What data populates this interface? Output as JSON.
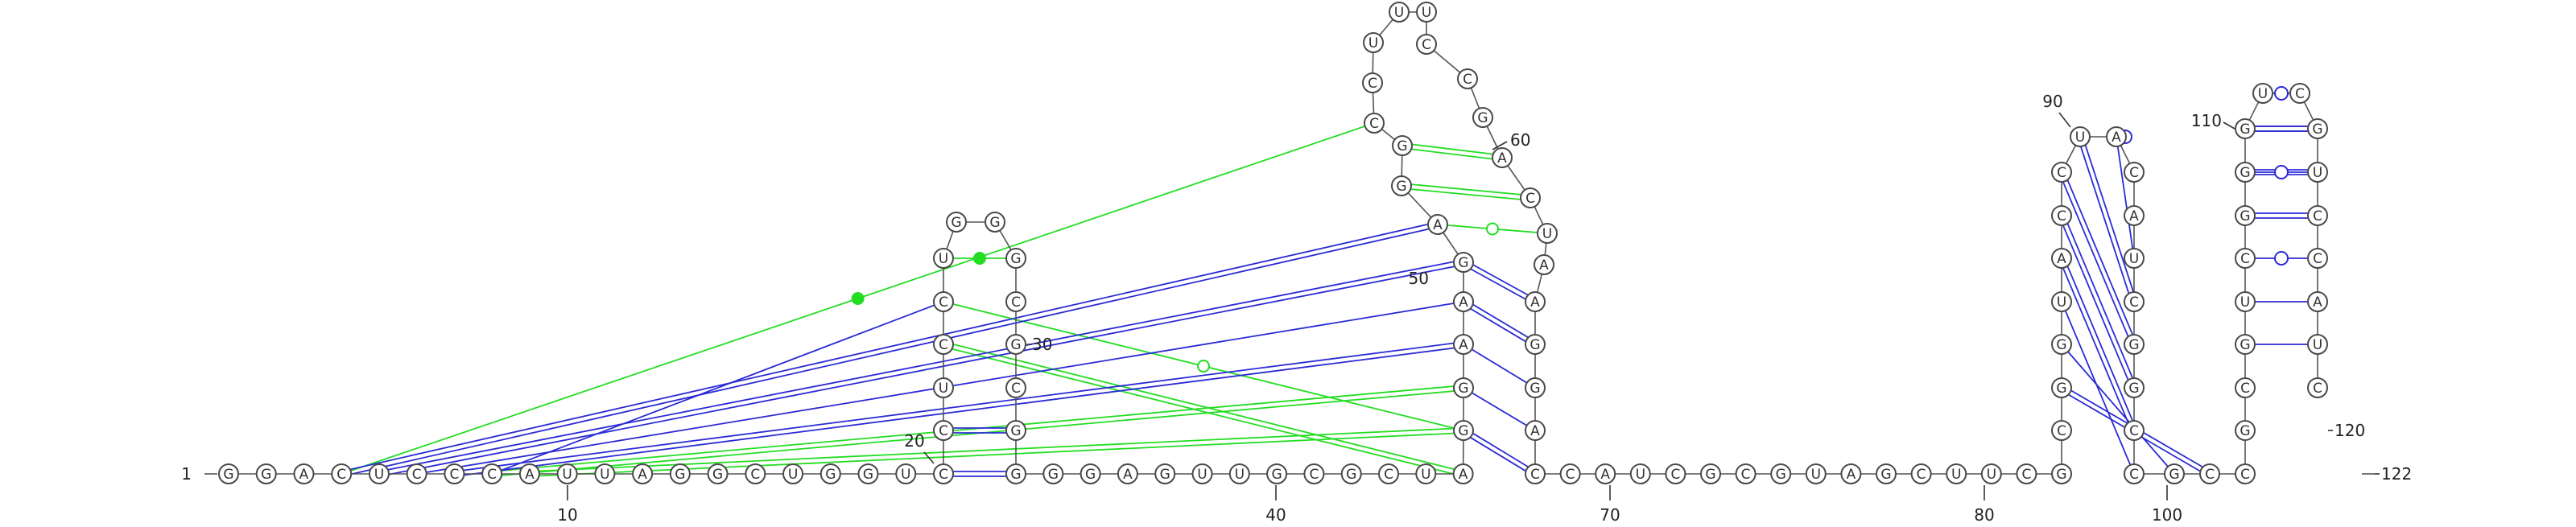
{
  "colors": {
    "canonical": "#2b2bd6",
    "noncanonical": "#22dd22",
    "backbone": "#555555"
  },
  "nucleotides": [
    "G",
    "G",
    "A",
    "C",
    "U",
    "C",
    "C",
    "C",
    "A",
    "U",
    "U",
    "A",
    "G",
    "G",
    "C",
    "U",
    "G",
    "G",
    "U",
    "C",
    "C",
    "U",
    "C",
    "C",
    "U",
    "G",
    "G",
    "G",
    "C",
    "G",
    "C",
    "G",
    "G",
    "G",
    "G",
    "A",
    "G",
    "U",
    "U",
    "G",
    "C",
    "G",
    "C",
    "U",
    "A",
    "G",
    "G",
    "A",
    "A",
    "G",
    "A",
    "G",
    "G",
    "C",
    "C",
    "U",
    "U",
    "U",
    "C",
    "C",
    "G",
    "A",
    "C",
    "U",
    "A",
    "A",
    "G",
    "G",
    "A",
    "C",
    "C",
    "A",
    "U",
    "C",
    "G",
    "C",
    "G",
    "U",
    "A",
    "G",
    "C",
    "U",
    "U",
    "C",
    "G",
    "C",
    "G",
    "G",
    "U",
    "A",
    "C",
    "C",
    "U",
    "A",
    "C",
    "A",
    "U",
    "C",
    "G",
    "G",
    "C",
    "C",
    "G",
    "C",
    "C",
    "G",
    "C",
    "G",
    "U",
    "C",
    "G",
    "G",
    "G",
    "U",
    "C",
    "G",
    "U",
    "C",
    "C",
    "A",
    "U",
    "C"
  ],
  "labels": [
    "1",
    "10",
    "20",
    "30",
    "40",
    "50",
    "60",
    "70",
    "80",
    "90",
    "100",
    "110",
    "120",
    "122"
  ]
}
